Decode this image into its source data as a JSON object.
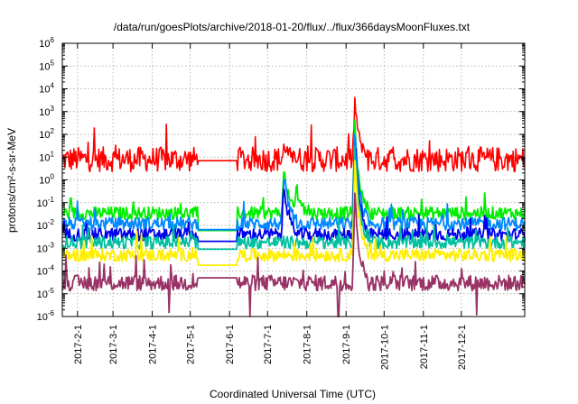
{
  "chart_data": {
    "type": "line",
    "title": "/data/run/goesPlots/archive/2018-01-20/flux/../flux/366daysMoonFluxes.txt",
    "xlabel": "Coordinated Universal Time (UTC)",
    "ylabel": "protons/cm²-s-sr-MeV",
    "yscale": "log",
    "ylim": [
      1e-06,
      1000000.0
    ],
    "xlim": [
      "2017-01-20",
      "2018-01-20"
    ],
    "grid": true,
    "y_ticks": [
      {
        "value": 1e-06,
        "base": "10",
        "exp": "-6"
      },
      {
        "value": 1e-05,
        "base": "10",
        "exp": "-5"
      },
      {
        "value": 0.0001,
        "base": "10",
        "exp": "-4"
      },
      {
        "value": 0.001,
        "base": "10",
        "exp": "-3"
      },
      {
        "value": 0.01,
        "base": "10",
        "exp": "-2"
      },
      {
        "value": 0.1,
        "base": "10",
        "exp": "-1"
      },
      {
        "value": 1.0,
        "base": "10",
        "exp": "0"
      },
      {
        "value": 10.0,
        "base": "10",
        "exp": "1"
      },
      {
        "value": 100.0,
        "base": "10",
        "exp": "2"
      },
      {
        "value": 1000.0,
        "base": "10",
        "exp": "3"
      },
      {
        "value": 10000.0,
        "base": "10",
        "exp": "4"
      },
      {
        "value": 100000.0,
        "base": "10",
        "exp": "5"
      },
      {
        "value": 1000000.0,
        "base": "10",
        "exp": "6"
      }
    ],
    "x_ticks": [
      {
        "date": "2017-02-01",
        "label": "2017-2-1"
      },
      {
        "date": "2017-03-01",
        "label": "2017-3-1"
      },
      {
        "date": "2017-04-01",
        "label": "2017-4-1"
      },
      {
        "date": "2017-05-01",
        "label": "2017-5-1"
      },
      {
        "date": "2017-06-01",
        "label": "2017-6-1"
      },
      {
        "date": "2017-07-01",
        "label": "2017-7-1"
      },
      {
        "date": "2017-08-01",
        "label": "2017-8-1"
      },
      {
        "date": "2017-09-01",
        "label": "2017-9-1"
      },
      {
        "date": "2017-10-01",
        "label": "2017-10-1"
      },
      {
        "date": "2017-11-01",
        "label": "2017-11-1"
      },
      {
        "date": "2017-12-01",
        "label": "2017-12-1"
      }
    ],
    "data_gap": [
      "2017-05-07",
      "2017-06-07"
    ],
    "series": [
      {
        "color": "#ff0000",
        "baseline": 8,
        "gap_value": 7,
        "events": [
          {
            "date": "2017-09-08",
            "peak": 3000
          },
          {
            "date": "2017-07-14",
            "peak": 30
          }
        ]
      },
      {
        "color": "#00ee00",
        "baseline": 0.035,
        "gap_value": 0.006,
        "events": [
          {
            "date": "2017-09-08",
            "peak": 300
          },
          {
            "date": "2017-07-24",
            "peak": 0.5
          },
          {
            "date": "2017-07-14",
            "peak": 5
          }
        ]
      },
      {
        "color": "#0088ff",
        "baseline": 0.012,
        "gap_value": 0.0065,
        "events": [
          {
            "date": "2017-09-08",
            "peak": 150
          },
          {
            "date": "2017-07-14",
            "peak": 2
          }
        ]
      },
      {
        "color": "#0000ee",
        "baseline": 0.004,
        "gap_value": 0.002,
        "events": [
          {
            "date": "2017-09-08",
            "peak": 60
          },
          {
            "date": "2017-07-14",
            "peak": 1
          }
        ]
      },
      {
        "color": "#00c0a0",
        "baseline": 0.0018,
        "gap_value": 0.0009,
        "events": [
          {
            "date": "2017-09-08",
            "peak": 30
          }
        ]
      },
      {
        "color": "#ffee00",
        "baseline": 0.0005,
        "gap_value": 0.00018,
        "events": [
          {
            "date": "2017-09-08",
            "peak": 8
          }
        ]
      },
      {
        "color": "#993366",
        "baseline": 3e-05,
        "gap_value": 5e-05,
        "events": [
          {
            "date": "2017-09-08",
            "peak": 0.3
          }
        ],
        "dropouts": [
          {
            "date": "2017-04-14",
            "value": 1.5e-06
          },
          {
            "date": "2017-06-17",
            "value": 1e-06
          },
          {
            "date": "2017-08-26",
            "value": 1e-06
          },
          {
            "date": "2017-12-13",
            "value": 1.2e-06
          }
        ]
      }
    ]
  }
}
